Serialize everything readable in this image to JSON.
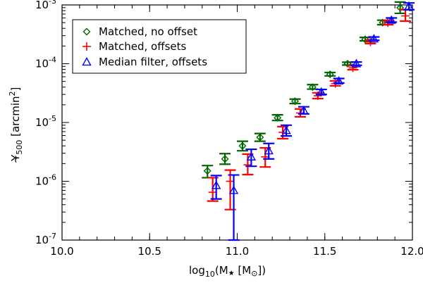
{
  "chart_data": {
    "type": "scatter",
    "xlabel": {
      "main": "log",
      "sub": "10",
      "rest": "(M",
      "star": "★",
      "bracket": " [M",
      "sun": "⊙",
      "close": "])"
    },
    "ylabel": {
      "tilde": "~",
      "main": "Y",
      "sub": "500",
      "rest": " [arcmin",
      "sup": "2",
      "close": "]"
    },
    "xlim": [
      10.0,
      12.0
    ],
    "ylim_log10": [
      -7,
      -3
    ],
    "xticks": [
      {
        "value": 10.0,
        "label": "10.0"
      },
      {
        "value": 10.5,
        "label": "10.5"
      },
      {
        "value": 11.0,
        "label": "11.0"
      },
      {
        "value": 11.5,
        "label": "11.5"
      },
      {
        "value": 12.0,
        "label": "12.0"
      }
    ],
    "yticks": [
      {
        "exp": -7,
        "base": "10",
        "sup": "-7"
      },
      {
        "exp": -6,
        "base": "10",
        "sup": "-6"
      },
      {
        "exp": -5,
        "base": "10",
        "sup": "-5"
      },
      {
        "exp": -4,
        "base": "10",
        "sup": "-4"
      },
      {
        "exp": -3,
        "base": "10",
        "sup": "-3"
      }
    ],
    "legend": {
      "position": "top-left",
      "entries": [
        {
          "label": "Matched, no offset",
          "series": 0
        },
        {
          "label": "Matched, offsets",
          "series": 1
        },
        {
          "label": "Median filter, offsets",
          "series": 2
        }
      ]
    },
    "series": [
      {
        "name": "Matched, no offset",
        "marker": "diamond",
        "color": "#006400",
        "points": [
          {
            "x": 10.83,
            "y": 1.5e-06,
            "lo": 1.15e-06,
            "hi": 1.85e-06
          },
          {
            "x": 10.93,
            "y": 2.4e-06,
            "lo": 1.95e-06,
            "hi": 2.95e-06
          },
          {
            "x": 11.03,
            "y": 4e-06,
            "lo": 3.3e-06,
            "hi": 4.8e-06
          },
          {
            "x": 11.13,
            "y": 5.6e-06,
            "lo": 4.8e-06,
            "hi": 6.5e-06
          },
          {
            "x": 11.23,
            "y": 1.2e-05,
            "lo": 1.08e-05,
            "hi": 1.35e-05
          },
          {
            "x": 11.33,
            "y": 2.3e-05,
            "lo": 2.1e-05,
            "hi": 2.5e-05
          },
          {
            "x": 11.43,
            "y": 4e-05,
            "lo": 3.7e-05,
            "hi": 4.4e-05
          },
          {
            "x": 11.53,
            "y": 6.6e-05,
            "lo": 6.2e-05,
            "hi": 7.1e-05
          },
          {
            "x": 11.63,
            "y": 0.0001,
            "lo": 9.5e-05,
            "hi": 0.000106
          },
          {
            "x": 11.73,
            "y": 0.00026,
            "lo": 0.000245,
            "hi": 0.00028
          },
          {
            "x": 11.83,
            "y": 0.0005,
            "lo": 0.00046,
            "hi": 0.00055
          },
          {
            "x": 11.93,
            "y": 0.0009,
            "lo": 0.00072,
            "hi": 0.00112
          }
        ]
      },
      {
        "name": "Matched, offsets",
        "marker": "plus",
        "color": "#ff0000",
        "points": [
          {
            "x": 10.86,
            "y": 6.5e-07,
            "lo": 4.6e-07,
            "hi": 1.15e-06
          },
          {
            "x": 10.96,
            "y": 1e-06,
            "lo": 3.3e-07,
            "hi": 1.55e-06
          },
          {
            "x": 11.06,
            "y": 1.9e-06,
            "lo": 1.3e-06,
            "hi": 2.9e-06
          },
          {
            "x": 11.16,
            "y": 2.6e-06,
            "lo": 1.75e-06,
            "hi": 3.7e-06
          },
          {
            "x": 11.26,
            "y": 6.8e-06,
            "lo": 5.3e-06,
            "hi": 8.5e-06
          },
          {
            "x": 11.36,
            "y": 1.45e-05,
            "lo": 1.25e-05,
            "hi": 1.7e-05
          },
          {
            "x": 11.46,
            "y": 2.85e-05,
            "lo": 2.55e-05,
            "hi": 3.2e-05
          },
          {
            "x": 11.56,
            "y": 4.6e-05,
            "lo": 4.2e-05,
            "hi": 5.1e-05
          },
          {
            "x": 11.66,
            "y": 8.5e-05,
            "lo": 7.9e-05,
            "hi": 9.2e-05
          },
          {
            "x": 11.76,
            "y": 0.000235,
            "lo": 0.00022,
            "hi": 0.000255
          },
          {
            "x": 11.86,
            "y": 0.0005,
            "lo": 0.00046,
            "hi": 0.00054
          },
          {
            "x": 11.96,
            "y": 0.00065,
            "lo": 0.00053,
            "hi": 0.00083
          }
        ]
      },
      {
        "name": "Median filter, offsets",
        "marker": "triangle",
        "color": "#0000ff",
        "points": [
          {
            "x": 10.88,
            "y": 8.5e-07,
            "lo": 5e-07,
            "hi": 1.25e-06
          },
          {
            "x": 10.98,
            "y": 7e-07,
            "lo": 1e-07,
            "hi": 1.28e-06
          },
          {
            "x": 11.08,
            "y": 2.6e-06,
            "lo": 1.8e-06,
            "hi": 3.5e-06
          },
          {
            "x": 11.18,
            "y": 3.3e-06,
            "lo": 2.4e-06,
            "hi": 4.4e-06
          },
          {
            "x": 11.28,
            "y": 7.3e-06,
            "lo": 5.9e-06,
            "hi": 9e-06
          },
          {
            "x": 11.38,
            "y": 1.6e-05,
            "lo": 1.4e-05,
            "hi": 1.85e-05
          },
          {
            "x": 11.48,
            "y": 3.3e-05,
            "lo": 3e-05,
            "hi": 3.65e-05
          },
          {
            "x": 11.58,
            "y": 5.1e-05,
            "lo": 4.7e-05,
            "hi": 5.6e-05
          },
          {
            "x": 11.68,
            "y": 0.0001,
            "lo": 9.4e-05,
            "hi": 0.000107
          },
          {
            "x": 11.78,
            "y": 0.000265,
            "lo": 0.00025,
            "hi": 0.000285
          },
          {
            "x": 11.88,
            "y": 0.00055,
            "lo": 0.00051,
            "hi": 0.0006
          },
          {
            "x": 11.98,
            "y": 0.00095,
            "lo": 0.00083,
            "hi": 0.00108
          }
        ]
      }
    ]
  }
}
